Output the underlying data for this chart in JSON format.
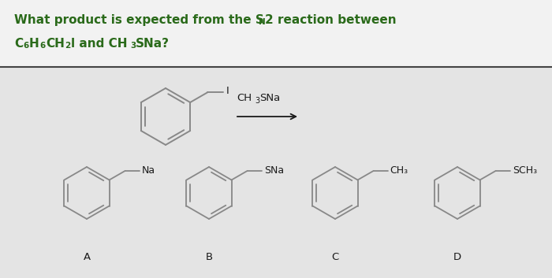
{
  "bg_top": "#f0f0f0",
  "bg_bottom": "#e0e0e0",
  "divider_color": "#444444",
  "text_color": "#1a1a1a",
  "green_color": "#2a6a1a",
  "struct_color": "#888888",
  "answer_groups": [
    "Na",
    "SNa",
    "CH₃",
    "SCH₃"
  ],
  "answer_labels": [
    "A",
    "B",
    "C",
    "D"
  ],
  "fig_width": 7.0,
  "fig_height": 3.53,
  "dpi": 100
}
